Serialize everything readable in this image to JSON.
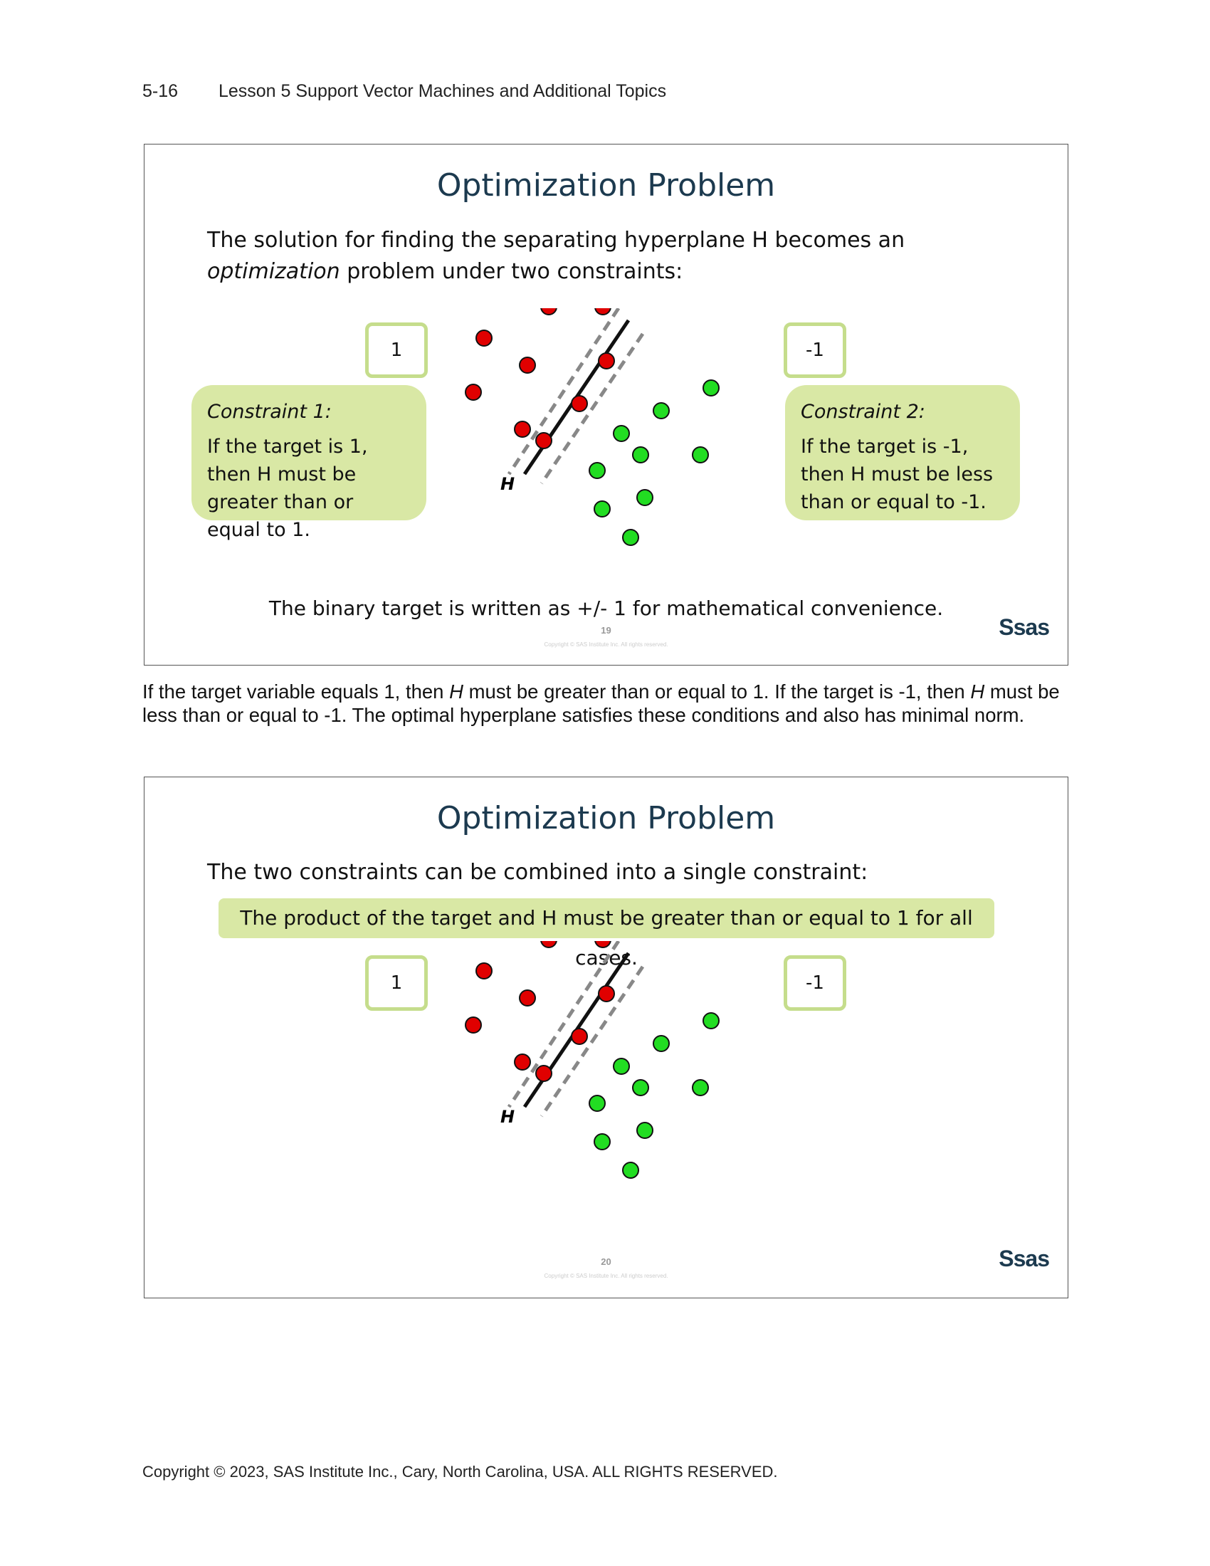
{
  "header": {
    "page_number": "5-16",
    "title": "Lesson 5  Support Vector Machines and Additional Topics"
  },
  "slide1": {
    "title": "Optimization Problem",
    "body_line1": "The solution for finding the separating hyperplane H becomes an",
    "body_line2_em": "optimization",
    "body_line2_rest": " problem under two constraints:",
    "label_left": "1",
    "label_right": "-1",
    "constraint1_title": "Constraint 1:",
    "constraint1_text": "If the target is 1, then H must be greater than or equal to 1.",
    "constraint2_title": "Constraint 2:",
    "constraint2_text": "If the target is -1, then H must be less than or equal to -1.",
    "hyperplane_label": "H",
    "footnote": "The binary target is written as +/- 1 for mathematical convenience.",
    "slide_number": "19",
    "copyright": "Copyright © SAS Institute Inc. All rights reserved.",
    "logo": "Ssas"
  },
  "explanation": {
    "p1": "If the target variable equals 1, then ",
    "p1_em": "H",
    "p2": " must be greater than or equal to 1. If the target is -1, then ",
    "p2_em": "H",
    "p3": " must be less than or equal to -1. The optimal hyperplane satisfies these conditions and also has minimal norm."
  },
  "slide2": {
    "title": "Optimization Problem",
    "body_line1": "The two constraints can be combined into a single constraint:",
    "combined_constraint": "The product of the target and H must be greater than or equal to 1 for all cases.",
    "label_left": "1",
    "label_right": "-1",
    "hyperplane_label": "H",
    "slide_number": "20",
    "copyright": "Copyright © SAS Institute Inc. All rights reserved.",
    "logo": "Ssas"
  },
  "colors": {
    "red_point": "#e00000",
    "green_point": "#22dd22",
    "constraint_bg": "#d9e8a5",
    "title": "#1c3a4f"
  },
  "footer": {
    "copyright": "Copyright © 2023, SAS Institute Inc., Cary, North Carolina, USA. ALL RIGHTS RESERVED."
  }
}
